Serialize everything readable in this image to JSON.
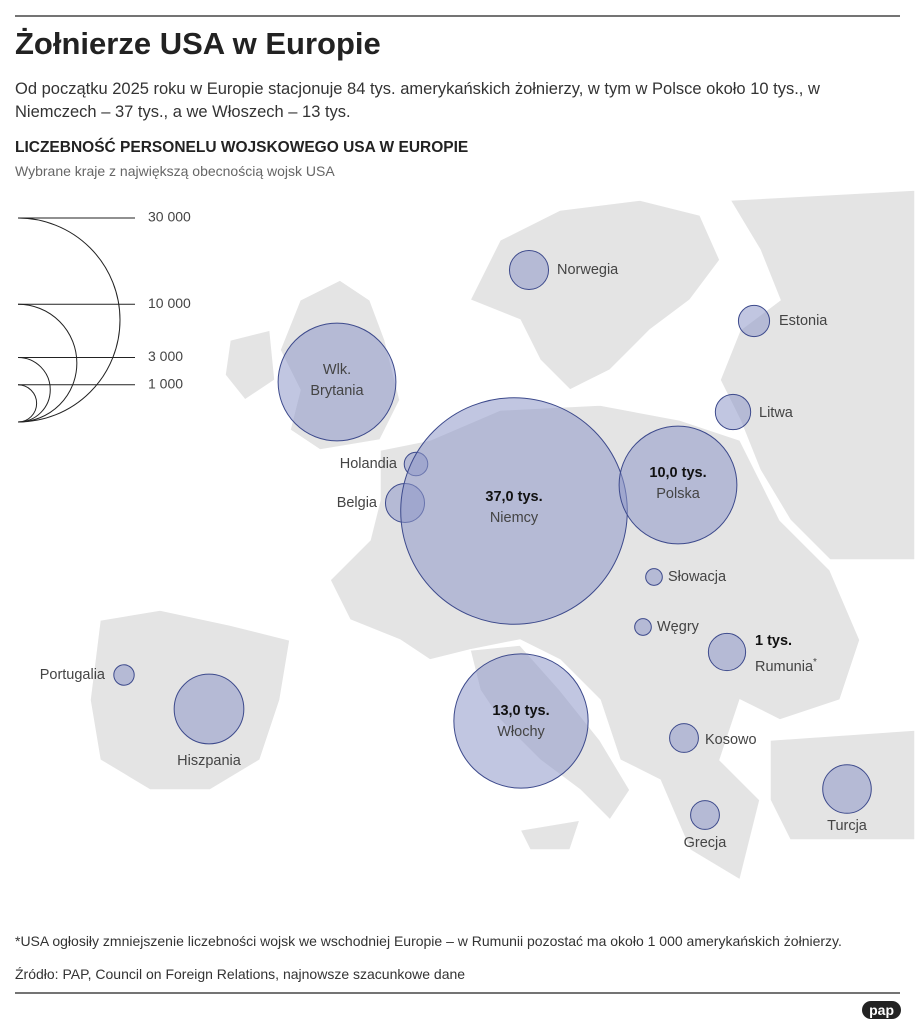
{
  "header": {
    "title": "Żołnierze USA w Europie",
    "subtitle": "Od początku 2025 roku w Europie stacjonuje 84 tys. amerykańskich żołnierzy, w tym w Polsce około 10 tys., w Niemczech – 37 tys., a we Włoszech – 13 tys."
  },
  "chart_data": {
    "type": "bubble-map",
    "title": "LICZEBNOŚĆ PERSONELU WOJSKOWEGO USA W EUROPIE",
    "subtitle": "Wybrane kraje z największą obecnością wojsk USA",
    "bubble_color": "#8e98c9",
    "bubble_stroke": "#3d4a8c",
    "size_ticks": [
      {
        "value": 30000,
        "label": "30 000"
      },
      {
        "value": 10000,
        "label": "10 000"
      },
      {
        "value": 3000,
        "label": "3 000"
      },
      {
        "value": 1000,
        "label": "1 000"
      }
    ],
    "countries": [
      {
        "name": "Norwegia",
        "value": 1100
      },
      {
        "name": "Estonia",
        "value": 700
      },
      {
        "name": "Wlk. Brytania",
        "value": 10000
      },
      {
        "name": "Litwa",
        "value": 900
      },
      {
        "name": "Holandia",
        "value": 400
      },
      {
        "name": "Belgia",
        "value": 1100
      },
      {
        "name": "Niemcy",
        "value": 37000,
        "value_label": "37,0 tys."
      },
      {
        "name": "Polska",
        "value": 10000,
        "value_label": "10,0 tys."
      },
      {
        "name": "Słowacja",
        "value": 200
      },
      {
        "name": "Węgry",
        "value": 200
      },
      {
        "name": "Rumunia",
        "value": 1000,
        "value_label": "1 tys.",
        "note_mark": "*"
      },
      {
        "name": "Portugalia",
        "value": 300
      },
      {
        "name": "Hiszpania",
        "value": 3500
      },
      {
        "name": "Włochy",
        "value": 13000,
        "value_label": "13,0 tys."
      },
      {
        "name": "Kosowo",
        "value": 600
      },
      {
        "name": "Turcja",
        "value": 1700
      },
      {
        "name": "Grecja",
        "value": 600
      }
    ]
  },
  "footer": {
    "note": "*USA ogłosiły zmniejszenie liczebności wojsk we wschodniej Europie – w Rumunii pozostać ma około 1 000 amerykańskich żołnierzy.",
    "source": "Źródło: PAP, Council on Foreign Relations, najnowsze szacunkowe dane",
    "logo": "pap"
  }
}
